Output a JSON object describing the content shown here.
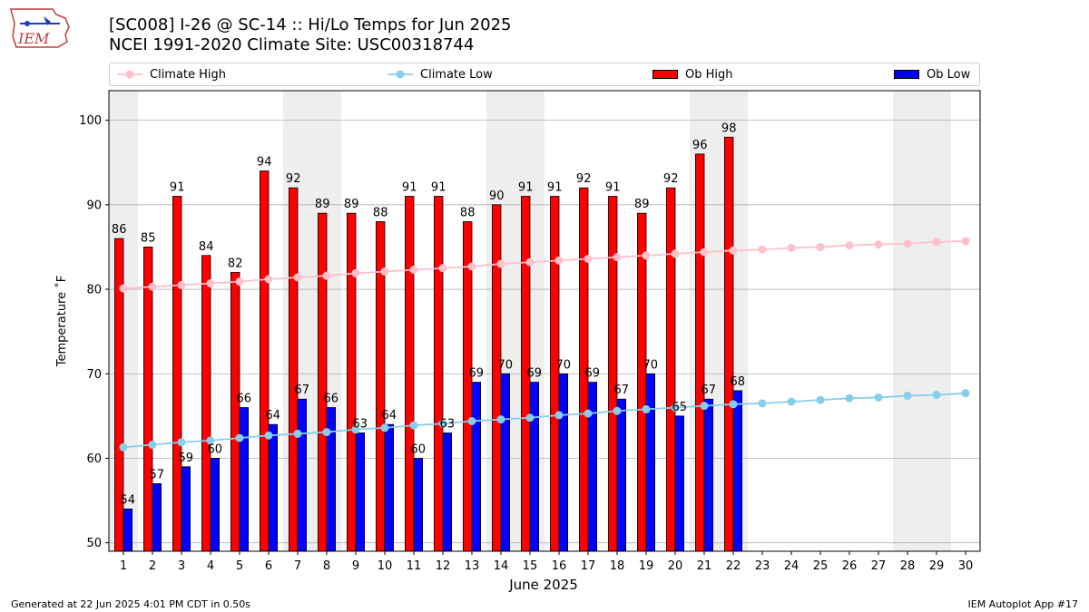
{
  "header": {
    "logo_text": "IEM",
    "title_line1": "[SC008] I-26 @ SC-14  :: Hi/Lo Temps for Jun 2025",
    "title_line2": "NCEI 1991-2020 Climate Site: USC00318744"
  },
  "legend": {
    "climate_high": "Climate High",
    "climate_low": "Climate Low",
    "ob_high": "Ob High",
    "ob_low": "Ob Low"
  },
  "colors": {
    "climate_high": "#ffc0cb",
    "climate_low": "#87ceeb",
    "ob_high": "#ff0000",
    "ob_low": "#0000ff",
    "weekend_band": "#eeeeee",
    "grid": "#b0b0b0"
  },
  "footer": {
    "left": "Generated at 22 Jun 2025 4:01 PM CDT in 0.50s",
    "right": "IEM Autoplot App #17"
  },
  "chart_data": {
    "type": "bar",
    "xlabel": "June 2025",
    "ylabel": "Temperature ˚F",
    "ylim": [
      49,
      103.5
    ],
    "xlim": [
      0.5,
      30.5
    ],
    "yticks": [
      50,
      60,
      70,
      80,
      90,
      100
    ],
    "categories": [
      "1",
      "2",
      "3",
      "4",
      "5",
      "6",
      "7",
      "8",
      "9",
      "10",
      "11",
      "12",
      "13",
      "14",
      "15",
      "16",
      "17",
      "18",
      "19",
      "20",
      "21",
      "22",
      "23",
      "24",
      "25",
      "26",
      "27",
      "28",
      "29",
      "30"
    ],
    "weekend_days": [
      1,
      7,
      8,
      14,
      15,
      21,
      22,
      28,
      29
    ],
    "grid": true,
    "legend_position": "top",
    "series": [
      {
        "name": "Ob High",
        "kind": "bar",
        "values": [
          86,
          85,
          91,
          84,
          82,
          94,
          92,
          89,
          89,
          88,
          91,
          91,
          88,
          90,
          91,
          91,
          92,
          91,
          89,
          92,
          96,
          98,
          null,
          null,
          null,
          null,
          null,
          null,
          null,
          null
        ]
      },
      {
        "name": "Ob Low",
        "kind": "bar",
        "values": [
          54,
          57,
          59,
          60,
          66,
          64,
          67,
          66,
          63,
          64,
          60,
          63,
          69,
          70,
          69,
          70,
          69,
          67,
          70,
          65,
          67,
          68,
          null,
          null,
          null,
          null,
          null,
          null,
          null,
          null
        ]
      },
      {
        "name": "Climate High",
        "kind": "line",
        "values": [
          80.1,
          80.3,
          80.5,
          80.7,
          80.9,
          81.2,
          81.4,
          81.6,
          81.9,
          82.1,
          82.3,
          82.5,
          82.7,
          83.0,
          83.2,
          83.4,
          83.6,
          83.8,
          84.0,
          84.2,
          84.4,
          84.6,
          84.7,
          84.9,
          85.0,
          85.2,
          85.3,
          85.4,
          85.6,
          85.7
        ]
      },
      {
        "name": "Climate Low",
        "kind": "line",
        "values": [
          61.3,
          61.6,
          61.9,
          62.1,
          62.4,
          62.7,
          62.9,
          63.1,
          63.4,
          63.6,
          63.9,
          64.1,
          64.4,
          64.6,
          64.8,
          65.1,
          65.3,
          65.6,
          65.8,
          66.0,
          66.2,
          66.4,
          66.5,
          66.7,
          66.9,
          67.1,
          67.2,
          67.4,
          67.5,
          67.7
        ]
      }
    ]
  }
}
